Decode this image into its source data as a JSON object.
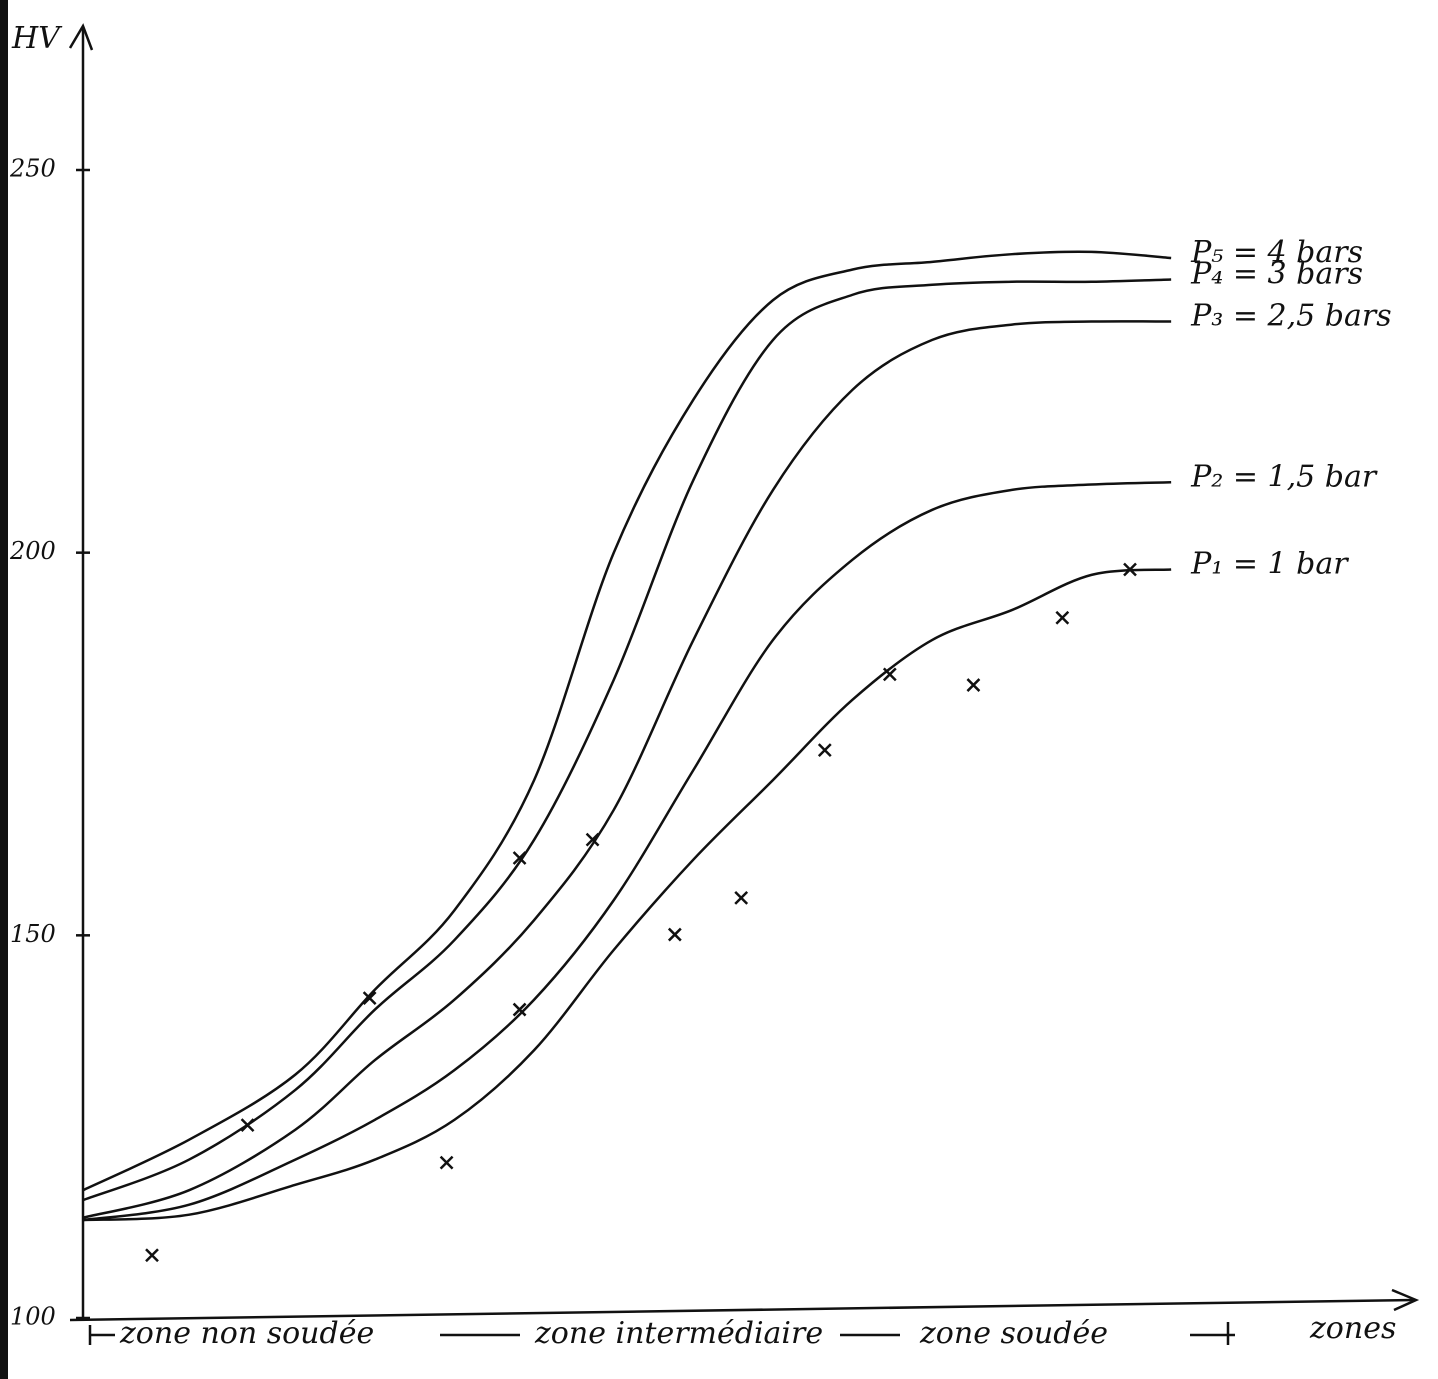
{
  "chart_data": {
    "type": "line",
    "y_label": "HV",
    "x_label": "zones",
    "xlim": [
      0,
      100
    ],
    "ylim": [
      100,
      250
    ],
    "yticks": [
      100,
      150,
      200,
      250
    ],
    "color": "#111111",
    "x": [
      0,
      8,
      16,
      22,
      28,
      34,
      40,
      46,
      52,
      58,
      64,
      70,
      76,
      82
    ],
    "series": [
      {
        "name": "P₅ = 4 bars",
        "values": [
          116.7,
          123.3,
          131.8,
          142.9,
          153.3,
          170.3,
          200,
          220,
          233,
          237,
          238,
          239,
          239.3,
          238.5
        ]
      },
      {
        "name": "P₄ = 3 bars",
        "values": [
          115.4,
          120.7,
          129.8,
          140.3,
          149.4,
          162.5,
          183.4,
          209.5,
          227.8,
          233.7,
          235,
          235.4,
          235.4,
          235.7
        ]
      },
      {
        "name": "P₃ = 2,5 bars",
        "values": [
          113.1,
          116.7,
          124.6,
          133.7,
          141.6,
          152,
          166.4,
          188.6,
          208.2,
          221.3,
          227.8,
          229.8,
          230.2,
          230.2
        ]
      },
      {
        "name": "P₂ = 1,5 bar",
        "values": [
          112.8,
          114.8,
          120.7,
          125.9,
          132.4,
          141.6,
          154.6,
          171.6,
          188.6,
          199.1,
          205.6,
          208.2,
          208.9,
          209.2
        ]
      },
      {
        "name": "P₁ = 1 bar",
        "values": [
          112.8,
          113.5,
          117.4,
          120.7,
          125.9,
          135,
          148.1,
          159.9,
          170.3,
          180.8,
          188.6,
          192.5,
          197.1,
          197.8
        ]
      }
    ],
    "points": {
      "x": [
        5.2,
        12.4,
        21.6,
        27.4,
        32.9,
        32.9,
        38.4,
        44.6,
        49.6,
        55.9,
        60.8,
        67.1,
        73.8,
        78.9
      ],
      "y": [
        108.2,
        125.2,
        141.8,
        120.3,
        140.3,
        160.1,
        162.5,
        150.1,
        154.9,
        174.2,
        184.1,
        182.7,
        191.5,
        197.8
      ]
    },
    "zone_labels": [
      "zone non soudée",
      "zone intermédiaire",
      "zone soudée"
    ]
  }
}
